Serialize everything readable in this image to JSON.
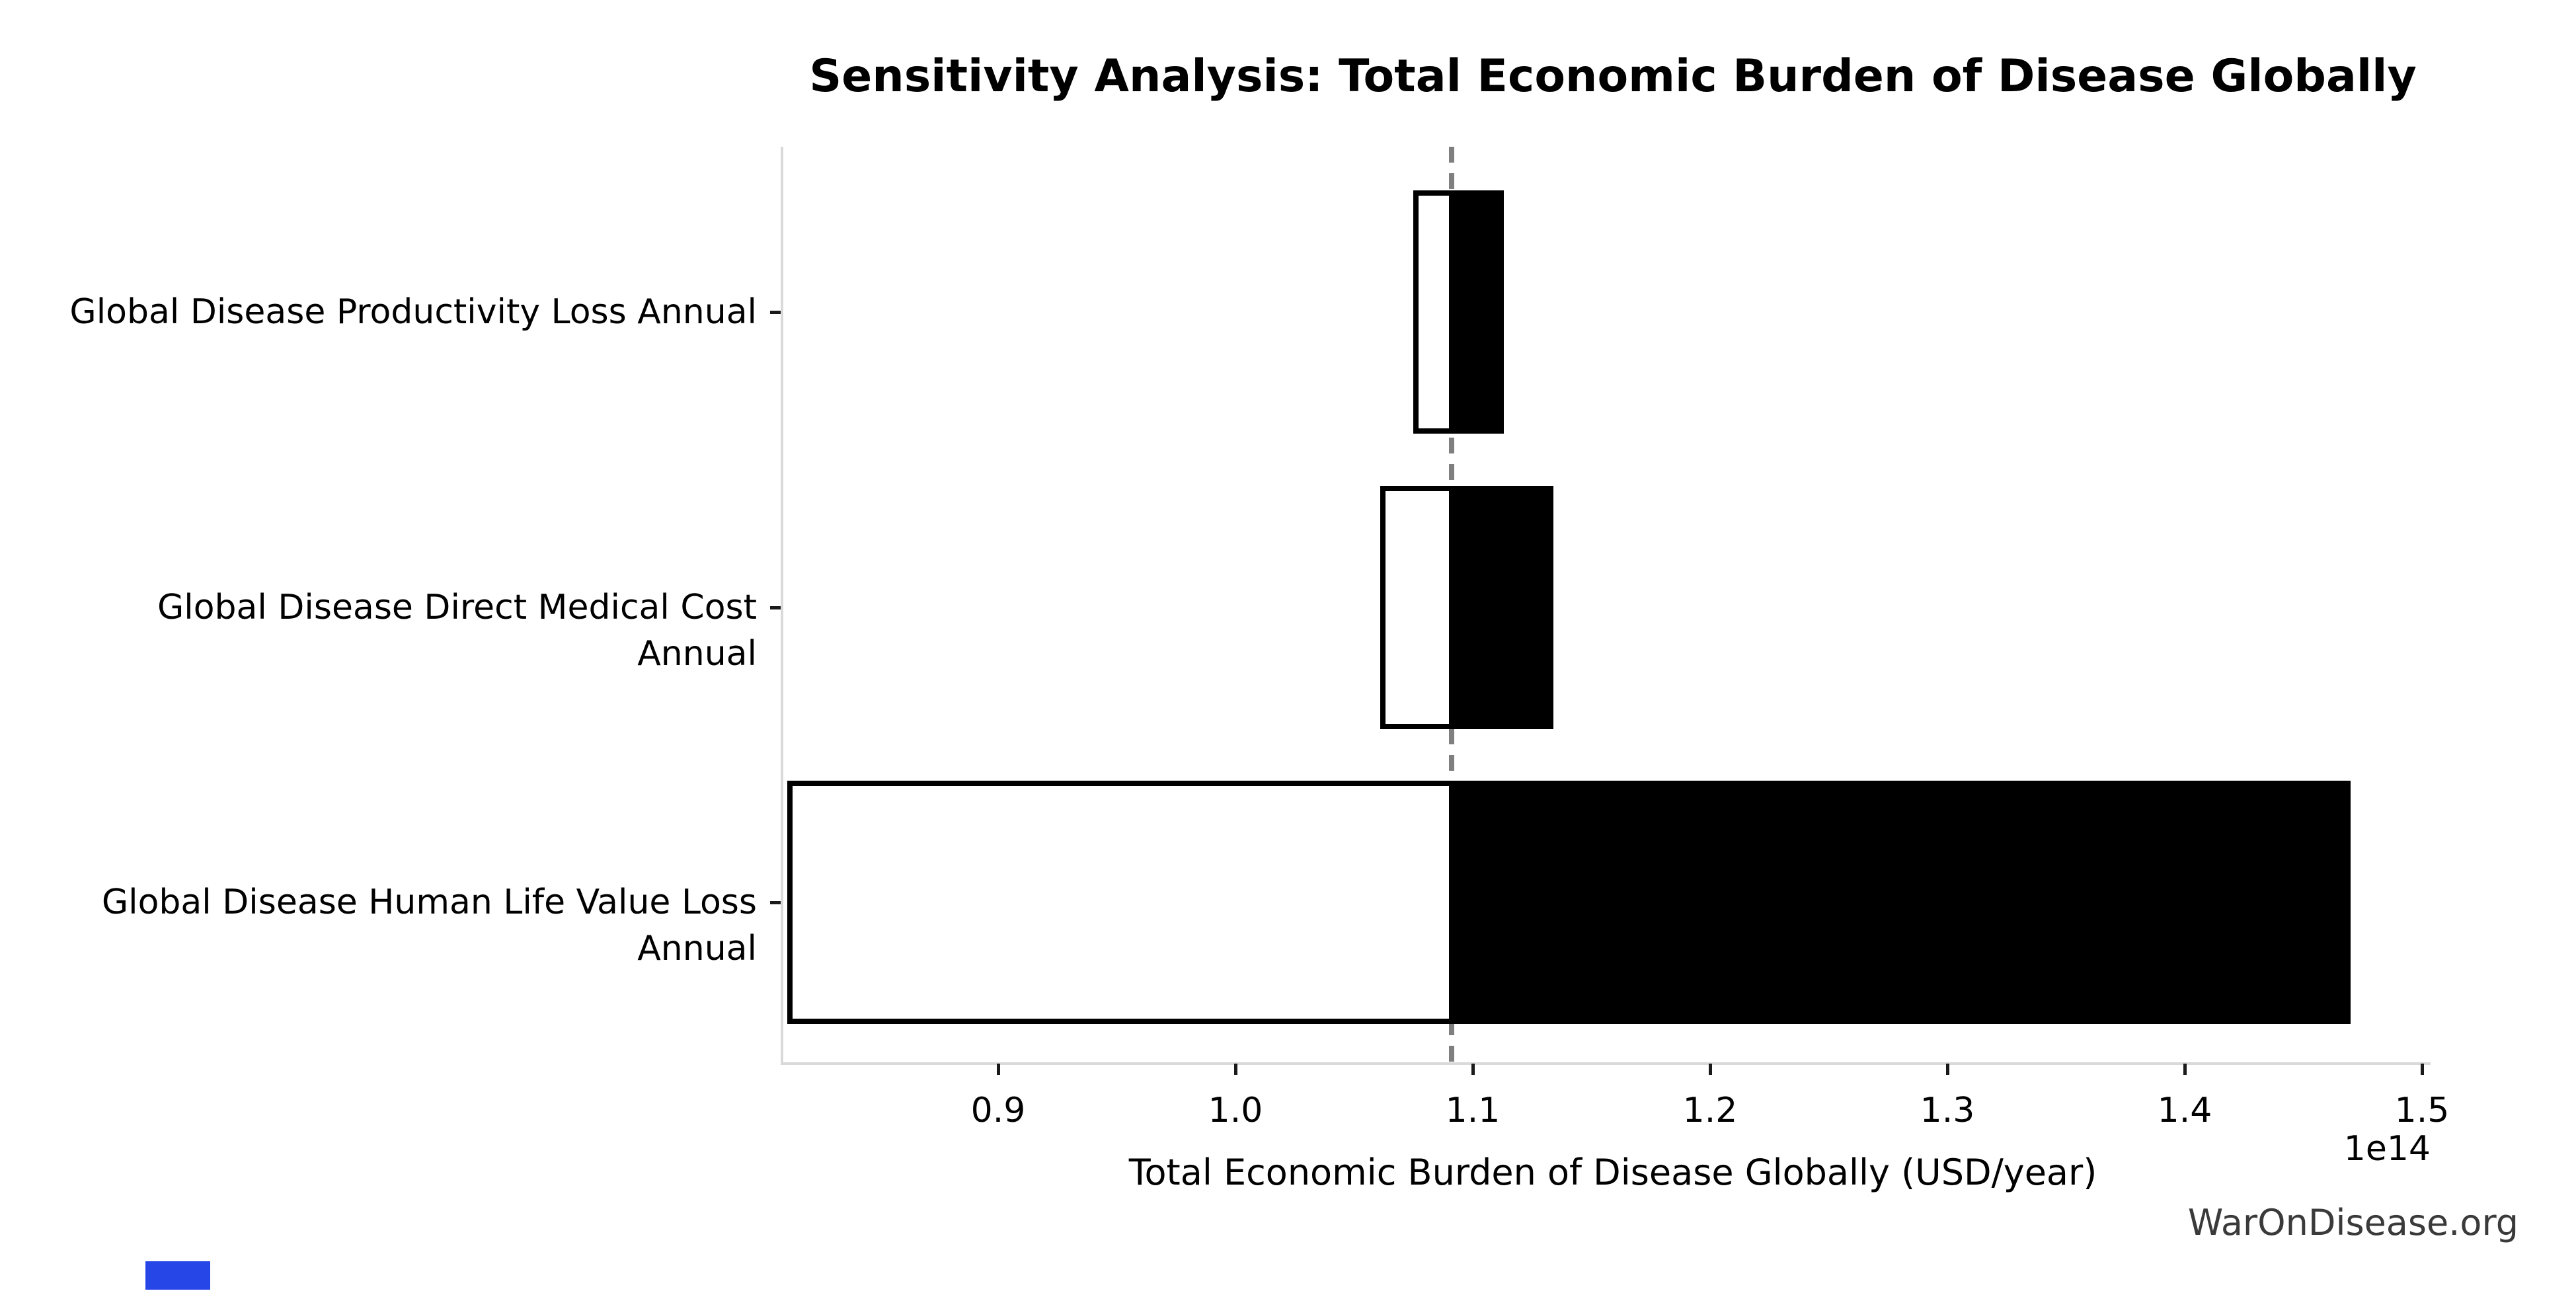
{
  "watermark": "WarOnDisease.org",
  "chart_data": {
    "type": "bar",
    "subtype": "tornado-horizontal",
    "title": "Sensitivity Analysis: Total Economic Burden of Disease Globally",
    "xlabel": "Total Economic Burden of Disease Globally (USD/year)",
    "x_offset_label": "1e14",
    "x_tick_labels": [
      "0.9",
      "1.0",
      "1.1",
      "1.2",
      "1.3",
      "1.4",
      "1.5"
    ],
    "x_tick_values": [
      90000000000000.0,
      100000000000000.0,
      110000000000000.0,
      120000000000000.0,
      130000000000000.0,
      140000000000000.0,
      150000000000000.0
    ],
    "xlim": [
      80890000000000.0,
      150250000000000.0
    ],
    "baseline_value": 109100000000000.0,
    "legend": "none",
    "grid": "off",
    "rows": [
      {
        "label": "Global Disease Productivity Loss Annual",
        "low": 107500000000000.0,
        "high": 111300000000000.0
      },
      {
        "label": "Global Disease Direct Medical Cost Annual",
        "low": 106100000000000.0,
        "high": 113400000000000.0
      },
      {
        "label": "Global Disease Human Life Value Loss Annual",
        "low": 81100000000000.0,
        "high": 147000000000000.0
      }
    ],
    "colors": {
      "low_segment_fill": "#ffffff",
      "high_segment_fill": "#000000",
      "bar_edge": "#000000",
      "baseline_dash": "#7f7f7f",
      "spine": "#d9d9d9",
      "tick": "#1a1a1a",
      "text": "#000000",
      "watermark": "#3a3a3a"
    }
  },
  "marker": {
    "note": "small solid blue rectangle bottom-left",
    "color": "#2646e8"
  }
}
